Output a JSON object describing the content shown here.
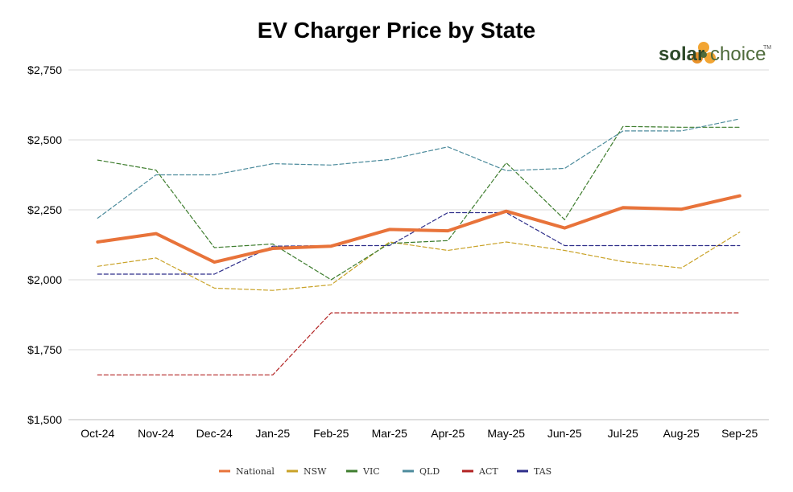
{
  "chart_data": {
    "type": "line",
    "title": "EV Charger Price by State",
    "xlabel": "",
    "ylabel": "",
    "categories": [
      "Oct-24",
      "Nov-24",
      "Dec-24",
      "Jan-25",
      "Feb-25",
      "Mar-25",
      "Apr-25",
      "May-25",
      "Jun-25",
      "Jul-25",
      "Aug-25",
      "Sep-25"
    ],
    "yticks": [
      "$1,500",
      "$1,750",
      "$2,000",
      "$2,250",
      "$2,500",
      "$2,750"
    ],
    "ylim": [
      1500,
      2750
    ],
    "grid": "horizontal",
    "legend_position": "bottom",
    "series": [
      {
        "name": "National",
        "color": "#E8733A",
        "style": "solid",
        "values": [
          2135,
          2165,
          2063,
          2112,
          2120,
          2180,
          2175,
          2245,
          2185,
          2258,
          2252,
          2300
        ]
      },
      {
        "name": "NSW",
        "color": "#C9A227",
        "style": "dashed",
        "values": [
          2048,
          2078,
          1970,
          1962,
          1982,
          2135,
          2105,
          2135,
          2105,
          2065,
          2042,
          2170
        ]
      },
      {
        "name": "VIC",
        "color": "#3E7D2E",
        "style": "dashed",
        "values": [
          2428,
          2392,
          2115,
          2128,
          2000,
          2130,
          2140,
          2418,
          2215,
          2548,
          2545,
          2545
        ]
      },
      {
        "name": "QLD",
        "color": "#4C8B9C",
        "style": "dashed",
        "values": [
          2220,
          2375,
          2375,
          2415,
          2410,
          2430,
          2475,
          2390,
          2398,
          2532,
          2532,
          2575
        ]
      },
      {
        "name": "ACT",
        "color": "#B22222",
        "style": "dashed",
        "values": [
          1660,
          1660,
          1660,
          1660,
          1882,
          1882,
          1882,
          1882,
          1882,
          1882,
          1882,
          1882
        ]
      },
      {
        "name": "TAS",
        "color": "#2E2E8A",
        "style": "dashed",
        "values": [
          2020,
          2020,
          2020,
          2120,
          2122,
          2122,
          2240,
          2240,
          2122,
          2122,
          2122,
          2122
        ]
      }
    ]
  },
  "branding": {
    "logo_bold": "solar",
    "logo_regular": " choice",
    "trademark": "TM"
  }
}
